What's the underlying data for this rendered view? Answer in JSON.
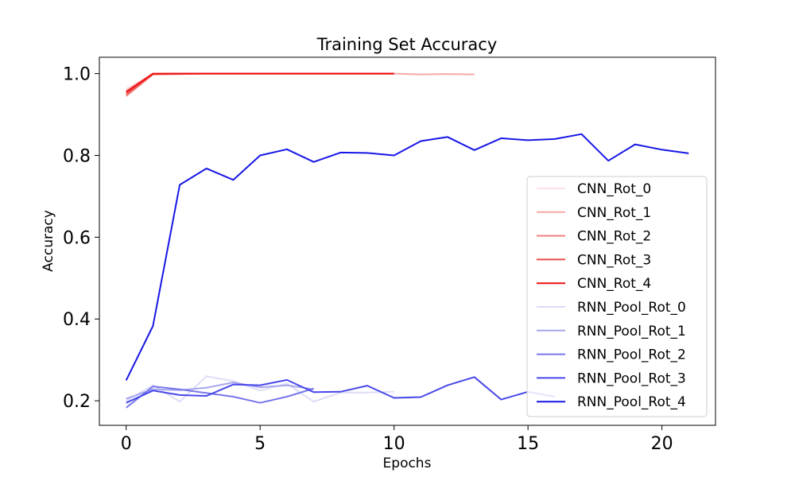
{
  "chart_data": {
    "type": "line",
    "title": "Training Set Accuracy",
    "xlabel": "Epochs",
    "ylabel": "Accuracy",
    "xlim": [
      -1,
      22
    ],
    "ylim": [
      0.14,
      1.04
    ],
    "xticks": [
      0,
      5,
      10,
      15,
      20
    ],
    "yticks": [
      0.2,
      0.4,
      0.6,
      0.8,
      1.0
    ],
    "xtick_labels": [
      "0",
      "5",
      "10",
      "15",
      "20"
    ],
    "ytick_labels": [
      "0.2",
      "0.4",
      "0.6",
      "0.8",
      "1.0"
    ],
    "legend_position": "lower-right",
    "series": [
      {
        "name": "CNN_Rot_0",
        "color": "#ffe0e8",
        "x": [
          0,
          1,
          2,
          3,
          4,
          5,
          6,
          7,
          8,
          9,
          10
        ],
        "y": [
          0.963,
          1.0,
          1.0,
          1.0,
          1.0,
          1.0,
          1.0,
          1.0,
          1.0,
          1.0,
          1.0
        ]
      },
      {
        "name": "CNN_Rot_1",
        "color": "#f5a8a8",
        "x": [
          0,
          1,
          2,
          3,
          4,
          5,
          6,
          7,
          8,
          9,
          10,
          11,
          12,
          13
        ],
        "y": [
          0.958,
          0.999,
          0.999,
          1.0,
          1.0,
          1.0,
          1.0,
          1.0,
          1.0,
          1.0,
          1.0,
          0.998,
          0.999,
          0.998
        ]
      },
      {
        "name": "CNN_Rot_2",
        "color": "#f07f7f",
        "x": [
          0,
          1,
          2,
          3,
          4,
          5,
          6,
          7,
          8,
          9,
          10
        ],
        "y": [
          0.945,
          0.998,
          0.999,
          1.0,
          1.0,
          1.0,
          1.0,
          1.0,
          1.0,
          1.0,
          1.0
        ]
      },
      {
        "name": "CNN_Rot_3",
        "color": "#ec4a4a",
        "x": [
          0,
          1,
          2,
          3,
          4,
          5,
          6,
          7,
          8,
          9,
          10
        ],
        "y": [
          0.95,
          0.999,
          1.0,
          1.0,
          1.0,
          1.0,
          1.0,
          1.0,
          1.0,
          1.0,
          1.0
        ]
      },
      {
        "name": "CNN_Rot_4",
        "color": "#ee1111",
        "x": [
          0,
          1,
          2,
          3,
          4,
          5,
          6,
          7,
          8,
          9,
          10
        ],
        "y": [
          0.955,
          1.0,
          1.0,
          1.0,
          1.0,
          1.0,
          1.0,
          1.0,
          1.0,
          1.0,
          1.0
        ]
      },
      {
        "name": "RNN_Pool_Rot_0",
        "color": "#dcdcf8",
        "x": [
          0,
          1,
          2,
          3,
          4,
          5,
          6,
          7,
          8,
          9,
          10
        ],
        "y": [
          0.2,
          0.238,
          0.198,
          0.26,
          0.248,
          0.225,
          0.242,
          0.198,
          0.22,
          0.22,
          0.222
        ]
      },
      {
        "name": "RNN_Pool_Rot_1",
        "color": "#a6a6ec",
        "x": [
          0,
          1,
          2,
          3,
          4,
          5,
          6,
          7
        ],
        "y": [
          0.205,
          0.228,
          0.226,
          0.232,
          0.245,
          0.233,
          0.238,
          0.228
        ]
      },
      {
        "name": "RNN_Pool_Rot_2",
        "color": "#7676ea",
        "x": [
          0,
          1,
          2,
          3,
          4,
          5,
          6,
          7
        ],
        "y": [
          0.183,
          0.235,
          0.228,
          0.219,
          0.21,
          0.195,
          0.21,
          0.23
        ]
      },
      {
        "name": "RNN_Pool_Rot_3",
        "color": "#4747ea",
        "x": [
          0,
          1,
          2,
          3,
          4,
          5,
          6,
          7,
          8,
          9,
          10,
          11,
          12,
          13,
          14,
          15,
          16
        ],
        "y": [
          0.195,
          0.225,
          0.214,
          0.212,
          0.24,
          0.238,
          0.251,
          0.221,
          0.222,
          0.237,
          0.207,
          0.209,
          0.238,
          0.258,
          0.203,
          0.222,
          0.21
        ]
      },
      {
        "name": "RNN_Pool_Rot_4",
        "color": "#1717e6",
        "x": [
          0,
          1,
          2,
          3,
          4,
          5,
          6,
          7,
          8,
          9,
          10,
          11,
          12,
          13,
          14,
          15,
          16,
          17,
          18,
          19,
          20,
          21
        ],
        "y": [
          0.25,
          0.383,
          0.728,
          0.768,
          0.74,
          0.8,
          0.815,
          0.784,
          0.807,
          0.806,
          0.8,
          0.835,
          0.845,
          0.813,
          0.842,
          0.837,
          0.84,
          0.852,
          0.787,
          0.827,
          0.814,
          0.805
        ]
      }
    ]
  }
}
